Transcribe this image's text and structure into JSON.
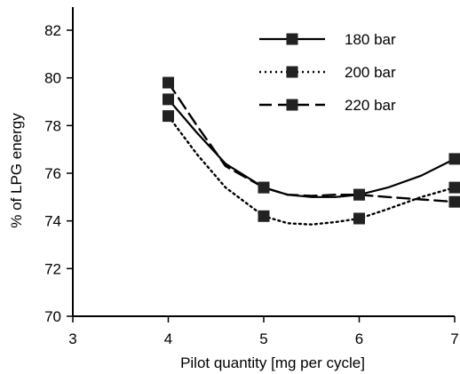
{
  "chart_data": {
    "type": "line",
    "xlabel": "Pilot quantity [mg per cycle]",
    "ylabel": "% of LPG energy",
    "xlim": [
      3,
      7
    ],
    "ylim": [
      70,
      83
    ],
    "xticks": [
      3,
      4,
      5,
      6,
      7
    ],
    "yticks": [
      70,
      72,
      74,
      76,
      78,
      80,
      82
    ],
    "grid": false,
    "legend_position": "top-right",
    "series": [
      {
        "name": "180 bar",
        "line_style": "solid",
        "marker": "square",
        "points": [
          [
            4,
            79.1
          ],
          [
            5,
            75.4
          ],
          [
            6,
            75.1
          ],
          [
            7,
            76.6
          ]
        ],
        "curve": [
          [
            4,
            79.1
          ],
          [
            4.3,
            77.7
          ],
          [
            4.6,
            76.4
          ],
          [
            5,
            75.4
          ],
          [
            5.25,
            75.1
          ],
          [
            5.5,
            75.0
          ],
          [
            5.75,
            75.0
          ],
          [
            6,
            75.1
          ],
          [
            6.3,
            75.4
          ],
          [
            6.65,
            75.9
          ],
          [
            7,
            76.6
          ]
        ]
      },
      {
        "name": "200 bar",
        "line_style": "dotted",
        "marker": "square",
        "points": [
          [
            4,
            78.4
          ],
          [
            5,
            74.2
          ],
          [
            6,
            74.1
          ],
          [
            7,
            75.4
          ]
        ],
        "curve": [
          [
            4,
            78.4
          ],
          [
            4.3,
            76.8
          ],
          [
            4.6,
            75.4
          ],
          [
            5,
            74.2
          ],
          [
            5.25,
            73.9
          ],
          [
            5.5,
            73.85
          ],
          [
            5.75,
            73.95
          ],
          [
            6,
            74.1
          ],
          [
            6.3,
            74.5
          ],
          [
            6.65,
            75.0
          ],
          [
            7,
            75.4
          ]
        ]
      },
      {
        "name": "220 bar",
        "line_style": "dashed",
        "marker": "square",
        "points": [
          [
            4,
            79.8
          ],
          [
            5,
            75.4
          ],
          [
            6,
            75.1
          ],
          [
            7,
            74.8
          ]
        ],
        "curve": [
          [
            4,
            79.8
          ],
          [
            4.3,
            78.0
          ],
          [
            4.6,
            76.3
          ],
          [
            5,
            75.4
          ],
          [
            5.25,
            75.1
          ],
          [
            5.5,
            75.05
          ],
          [
            5.75,
            75.1
          ],
          [
            6,
            75.1
          ],
          [
            6.3,
            75.0
          ],
          [
            6.65,
            74.9
          ],
          [
            7,
            74.8
          ]
        ]
      }
    ]
  }
}
